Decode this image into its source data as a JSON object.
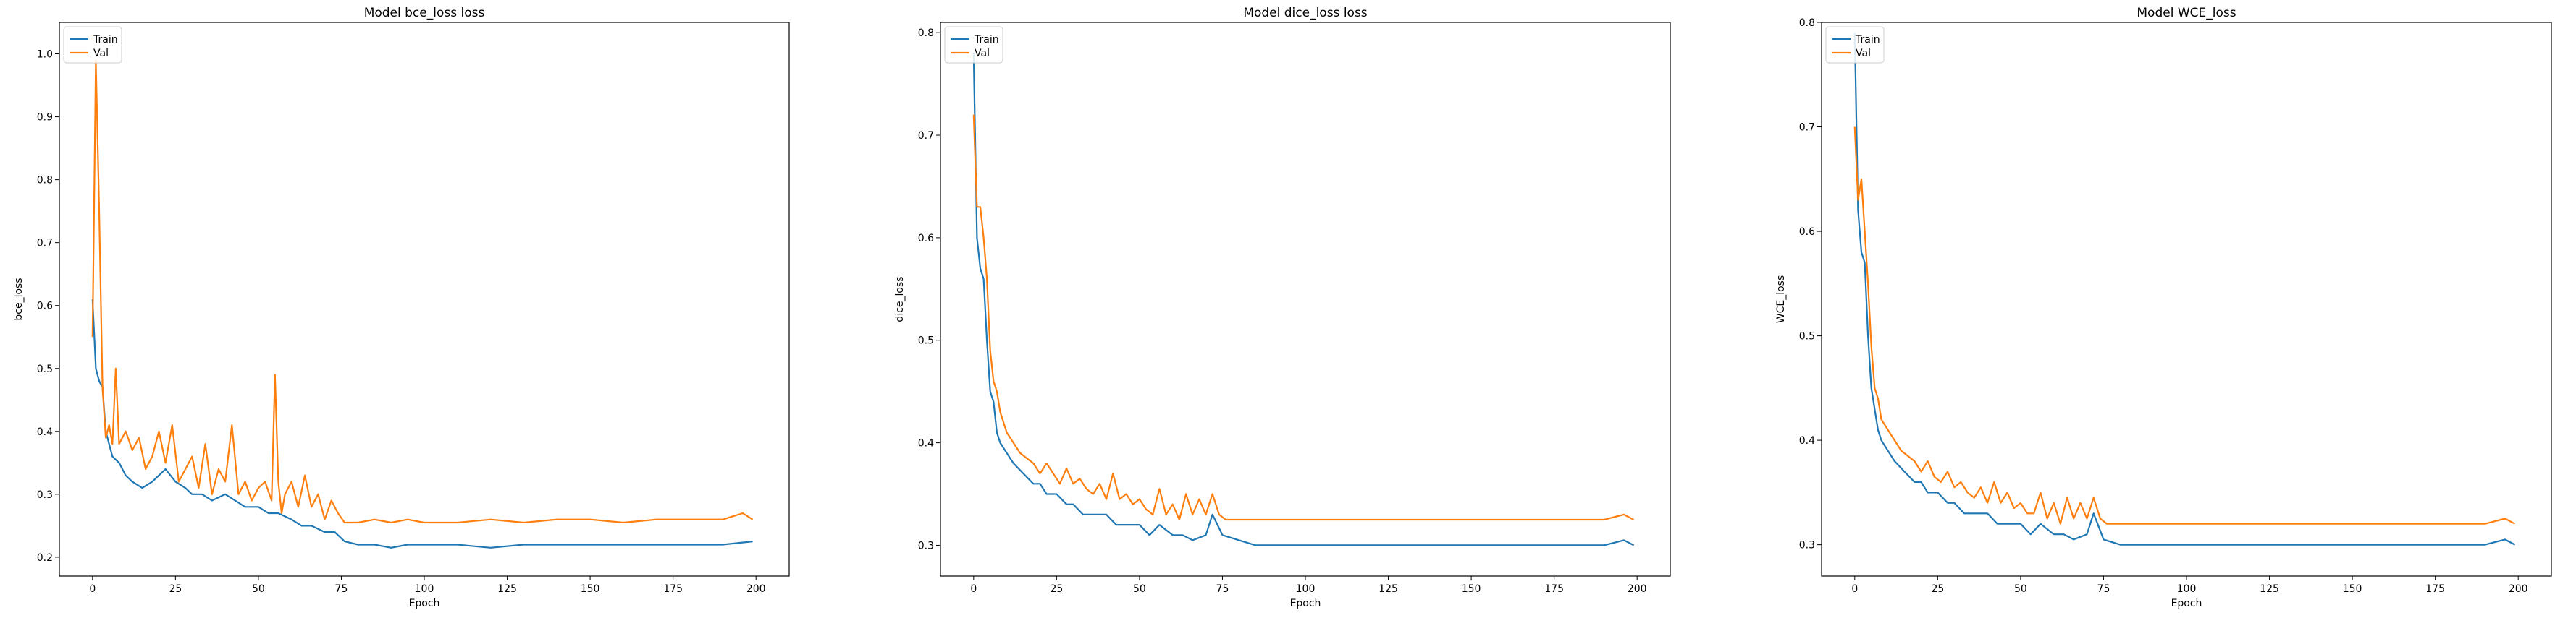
{
  "colors": {
    "train": "#1f77b4",
    "val": "#ff7f0e",
    "axis": "#000000",
    "background": "#ffffff"
  },
  "chart_data": [
    {
      "type": "line",
      "title": "Model bce_loss loss",
      "xlabel": "Epoch",
      "ylabel": "bce_loss",
      "xlim": [
        -10,
        210
      ],
      "ylim": [
        0.17,
        1.05
      ],
      "xticks": [
        0,
        25,
        50,
        75,
        100,
        125,
        150,
        175,
        200
      ],
      "yticks": [
        0.2,
        0.3,
        0.4,
        0.5,
        0.6,
        0.7,
        0.8,
        0.9,
        1.0
      ],
      "ytick_labels": [
        "0.2",
        "0.3",
        "0.4",
        "0.5",
        "0.6",
        "0.7",
        "0.8",
        "0.9",
        "1.0"
      ],
      "grid": false,
      "legend": {
        "position": "top-left",
        "entries": [
          "Train",
          "Val"
        ]
      },
      "series": [
        {
          "name": "Train",
          "x": [
            0,
            1,
            2,
            3,
            4,
            5,
            6,
            8,
            10,
            12,
            15,
            18,
            20,
            22,
            25,
            28,
            30,
            33,
            36,
            40,
            43,
            46,
            50,
            53,
            56,
            60,
            63,
            66,
            70,
            73,
            76,
            80,
            85,
            90,
            95,
            100,
            110,
            120,
            130,
            140,
            150,
            160,
            170,
            180,
            190,
            199
          ],
          "values": [
            0.61,
            0.5,
            0.48,
            0.47,
            0.4,
            0.38,
            0.36,
            0.35,
            0.33,
            0.32,
            0.31,
            0.32,
            0.33,
            0.34,
            0.32,
            0.31,
            0.3,
            0.3,
            0.29,
            0.3,
            0.29,
            0.28,
            0.28,
            0.27,
            0.27,
            0.26,
            0.25,
            0.25,
            0.24,
            0.24,
            0.225,
            0.22,
            0.22,
            0.215,
            0.22,
            0.22,
            0.22,
            0.215,
            0.22,
            0.22,
            0.22,
            0.22,
            0.22,
            0.22,
            0.22,
            0.225
          ]
        },
        {
          "name": "Val",
          "x": [
            0,
            1,
            2,
            3,
            4,
            5,
            6,
            7,
            8,
            10,
            12,
            14,
            16,
            18,
            20,
            22,
            24,
            26,
            28,
            30,
            32,
            34,
            36,
            38,
            40,
            42,
            44,
            46,
            48,
            50,
            52,
            54,
            55,
            56,
            57,
            58,
            60,
            62,
            64,
            66,
            68,
            70,
            72,
            74,
            76,
            80,
            85,
            90,
            95,
            100,
            110,
            120,
            130,
            140,
            150,
            160,
            170,
            180,
            190,
            196,
            199
          ],
          "values": [
            0.55,
            0.99,
            0.75,
            0.47,
            0.39,
            0.41,
            0.38,
            0.5,
            0.38,
            0.4,
            0.37,
            0.39,
            0.34,
            0.36,
            0.4,
            0.35,
            0.41,
            0.32,
            0.34,
            0.36,
            0.31,
            0.38,
            0.3,
            0.34,
            0.32,
            0.41,
            0.3,
            0.32,
            0.29,
            0.31,
            0.32,
            0.29,
            0.49,
            0.32,
            0.27,
            0.3,
            0.32,
            0.28,
            0.33,
            0.28,
            0.3,
            0.26,
            0.29,
            0.27,
            0.255,
            0.255,
            0.26,
            0.255,
            0.26,
            0.255,
            0.255,
            0.26,
            0.255,
            0.26,
            0.26,
            0.255,
            0.26,
            0.26,
            0.26,
            0.27,
            0.26
          ]
        }
      ]
    },
    {
      "type": "line",
      "title": "Model dice_loss loss",
      "xlabel": "Epoch",
      "ylabel": "dice_loss",
      "xlim": [
        -10,
        210
      ],
      "ylim": [
        0.27,
        0.81
      ],
      "xticks": [
        0,
        25,
        50,
        75,
        100,
        125,
        150,
        175,
        200
      ],
      "yticks": [
        0.3,
        0.4,
        0.5,
        0.6,
        0.7,
        0.8
      ],
      "ytick_labels": [
        "0.3",
        "0.4",
        "0.5",
        "0.6",
        "0.7",
        "0.8"
      ],
      "grid": false,
      "legend": {
        "position": "top-left",
        "entries": [
          "Train",
          "Val"
        ]
      },
      "series": [
        {
          "name": "Train",
          "x": [
            0,
            1,
            2,
            3,
            4,
            5,
            6,
            7,
            8,
            10,
            12,
            15,
            18,
            20,
            22,
            25,
            28,
            30,
            33,
            36,
            40,
            43,
            46,
            50,
            53,
            56,
            60,
            63,
            66,
            70,
            72,
            75,
            80,
            85,
            90,
            100,
            110,
            120,
            130,
            140,
            150,
            160,
            170,
            180,
            190,
            196,
            199
          ],
          "values": [
            0.78,
            0.6,
            0.57,
            0.56,
            0.5,
            0.45,
            0.44,
            0.41,
            0.4,
            0.39,
            0.38,
            0.37,
            0.36,
            0.36,
            0.35,
            0.35,
            0.34,
            0.34,
            0.33,
            0.33,
            0.33,
            0.32,
            0.32,
            0.32,
            0.31,
            0.32,
            0.31,
            0.31,
            0.305,
            0.31,
            0.33,
            0.31,
            0.305,
            0.3,
            0.3,
            0.3,
            0.3,
            0.3,
            0.3,
            0.3,
            0.3,
            0.3,
            0.3,
            0.3,
            0.3,
            0.305,
            0.3
          ]
        },
        {
          "name": "Val",
          "x": [
            0,
            1,
            2,
            3,
            4,
            5,
            6,
            7,
            8,
            10,
            12,
            14,
            16,
            18,
            20,
            22,
            24,
            26,
            28,
            30,
            32,
            34,
            36,
            38,
            40,
            42,
            44,
            46,
            48,
            50,
            52,
            54,
            56,
            58,
            60,
            62,
            64,
            66,
            68,
            70,
            72,
            74,
            76,
            80,
            85,
            90,
            100,
            110,
            120,
            130,
            140,
            150,
            160,
            170,
            180,
            190,
            196,
            199
          ],
          "values": [
            0.72,
            0.63,
            0.63,
            0.6,
            0.56,
            0.49,
            0.46,
            0.45,
            0.43,
            0.41,
            0.4,
            0.39,
            0.385,
            0.38,
            0.37,
            0.38,
            0.37,
            0.36,
            0.375,
            0.36,
            0.365,
            0.355,
            0.35,
            0.36,
            0.345,
            0.37,
            0.345,
            0.35,
            0.34,
            0.345,
            0.335,
            0.33,
            0.355,
            0.33,
            0.34,
            0.325,
            0.35,
            0.33,
            0.345,
            0.33,
            0.35,
            0.33,
            0.325,
            0.325,
            0.325,
            0.325,
            0.325,
            0.325,
            0.325,
            0.325,
            0.325,
            0.325,
            0.325,
            0.325,
            0.325,
            0.325,
            0.33,
            0.325
          ]
        }
      ]
    },
    {
      "type": "line",
      "title": "Model WCE_loss",
      "xlabel": "Epoch",
      "ylabel": "WCE_loss",
      "xlim": [
        -10,
        210
      ],
      "ylim": [
        0.27,
        0.8
      ],
      "xticks": [
        0,
        25,
        50,
        75,
        100,
        125,
        150,
        175,
        200
      ],
      "yticks": [
        0.3,
        0.4,
        0.5,
        0.6,
        0.7,
        0.8
      ],
      "ytick_labels": [
        "0.3",
        "0.4",
        "0.5",
        "0.6",
        "0.7",
        "0.8"
      ],
      "grid": false,
      "legend": {
        "position": "top-left",
        "entries": [
          "Train",
          "Val"
        ]
      },
      "series": [
        {
          "name": "Train",
          "x": [
            0,
            1,
            2,
            3,
            4,
            5,
            6,
            7,
            8,
            10,
            12,
            15,
            18,
            20,
            22,
            25,
            28,
            30,
            33,
            36,
            40,
            43,
            46,
            50,
            53,
            56,
            60,
            63,
            66,
            70,
            72,
            75,
            80,
            85,
            90,
            100,
            110,
            120,
            130,
            140,
            150,
            160,
            170,
            180,
            190,
            196,
            199
          ],
          "values": [
            0.79,
            0.62,
            0.58,
            0.57,
            0.5,
            0.45,
            0.43,
            0.41,
            0.4,
            0.39,
            0.38,
            0.37,
            0.36,
            0.36,
            0.35,
            0.35,
            0.34,
            0.34,
            0.33,
            0.33,
            0.33,
            0.32,
            0.32,
            0.32,
            0.31,
            0.32,
            0.31,
            0.31,
            0.305,
            0.31,
            0.33,
            0.305,
            0.3,
            0.3,
            0.3,
            0.3,
            0.3,
            0.3,
            0.3,
            0.3,
            0.3,
            0.3,
            0.3,
            0.3,
            0.3,
            0.305,
            0.3
          ]
        },
        {
          "name": "Val",
          "x": [
            0,
            1,
            2,
            3,
            4,
            5,
            6,
            7,
            8,
            10,
            12,
            14,
            16,
            18,
            20,
            22,
            24,
            26,
            28,
            30,
            32,
            34,
            36,
            38,
            40,
            42,
            44,
            46,
            48,
            50,
            52,
            54,
            56,
            58,
            60,
            62,
            64,
            66,
            68,
            70,
            72,
            74,
            76,
            80,
            85,
            90,
            100,
            110,
            120,
            130,
            140,
            150,
            160,
            170,
            180,
            190,
            196,
            199
          ],
          "values": [
            0.7,
            0.63,
            0.65,
            0.6,
            0.55,
            0.49,
            0.45,
            0.44,
            0.42,
            0.41,
            0.4,
            0.39,
            0.385,
            0.38,
            0.37,
            0.38,
            0.365,
            0.36,
            0.37,
            0.355,
            0.36,
            0.35,
            0.345,
            0.355,
            0.34,
            0.36,
            0.34,
            0.35,
            0.335,
            0.34,
            0.33,
            0.33,
            0.35,
            0.325,
            0.34,
            0.32,
            0.345,
            0.325,
            0.34,
            0.325,
            0.345,
            0.325,
            0.32,
            0.32,
            0.32,
            0.32,
            0.32,
            0.32,
            0.32,
            0.32,
            0.32,
            0.32,
            0.32,
            0.32,
            0.32,
            0.32,
            0.325,
            0.32
          ]
        }
      ]
    }
  ]
}
